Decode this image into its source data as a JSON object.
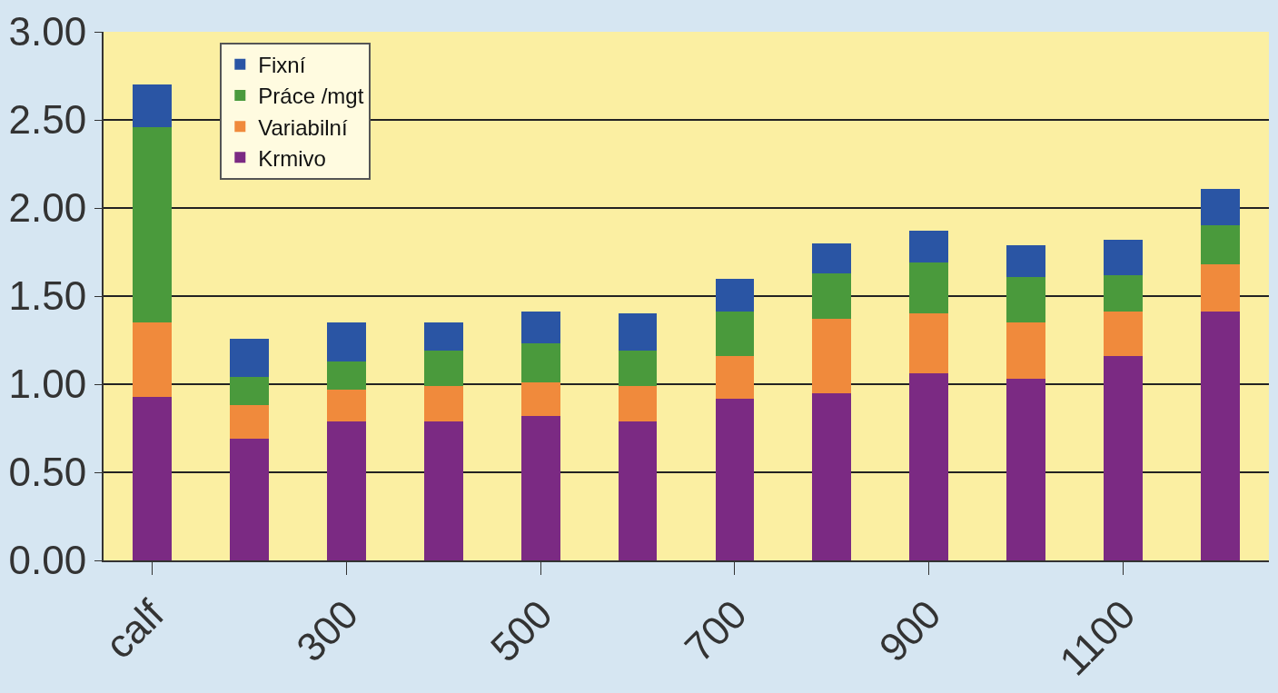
{
  "chart_data": {
    "type": "bar",
    "stacked": true,
    "categories": [
      "calf",
      null,
      "300",
      null,
      "500",
      null,
      "700",
      null,
      "900",
      null,
      "1100",
      null
    ],
    "series": [
      {
        "name": "Krmivo",
        "color": "#7b2a83",
        "values": [
          0.93,
          0.69,
          0.79,
          0.79,
          0.82,
          0.79,
          0.92,
          0.95,
          1.06,
          1.03,
          1.16,
          1.41
        ]
      },
      {
        "name": "Variabilní",
        "color": "#f08a3c",
        "values": [
          0.42,
          0.19,
          0.18,
          0.2,
          0.19,
          0.2,
          0.24,
          0.42,
          0.34,
          0.32,
          0.25,
          0.27
        ]
      },
      {
        "name": "Práce /mgt",
        "color": "#4a9a3c",
        "values": [
          1.11,
          0.16,
          0.16,
          0.2,
          0.22,
          0.2,
          0.25,
          0.26,
          0.29,
          0.26,
          0.21,
          0.22
        ]
      },
      {
        "name": "Fixní",
        "color": "#2a55a4",
        "values": [
          0.24,
          0.22,
          0.22,
          0.16,
          0.18,
          0.21,
          0.19,
          0.17,
          0.18,
          0.18,
          0.2,
          0.21
        ]
      }
    ],
    "ylim": [
      0,
      3
    ],
    "yticks": [
      {
        "value": 0,
        "label": "0.00"
      },
      {
        "value": 0.5,
        "label": "0.50"
      },
      {
        "value": 1,
        "label": "1.00"
      },
      {
        "value": 1.5,
        "label": "1.50"
      },
      {
        "value": 2,
        "label": "2.00"
      },
      {
        "value": 2.5,
        "label": "2.50"
      },
      {
        "value": 3,
        "label": "3.00"
      }
    ],
    "grid": "y",
    "legend": "top left"
  }
}
